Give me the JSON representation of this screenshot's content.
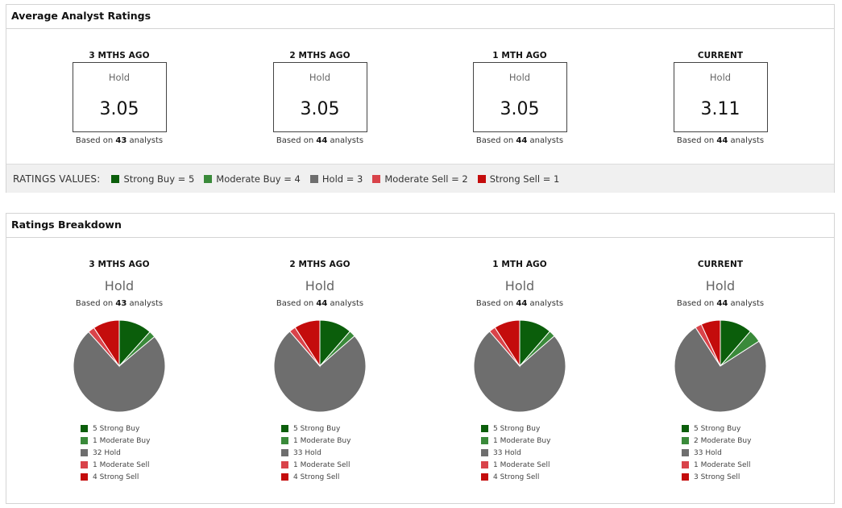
{
  "avg_panel": {
    "title": "Average Analyst Ratings",
    "columns": [
      {
        "head": "3 MTHS AGO",
        "label": "Hold",
        "value": "3.05",
        "based_prefix": "Based on",
        "analysts": "43",
        "based_suffix": "analysts"
      },
      {
        "head": "2 MTHS AGO",
        "label": "Hold",
        "value": "3.05",
        "based_prefix": "Based on",
        "analysts": "44",
        "based_suffix": "analysts"
      },
      {
        "head": "1 MTH AGO",
        "label": "Hold",
        "value": "3.05",
        "based_prefix": "Based on",
        "analysts": "44",
        "based_suffix": "analysts"
      },
      {
        "head": "CURRENT",
        "label": "Hold",
        "value": "3.11",
        "based_prefix": "Based on",
        "analysts": "44",
        "based_suffix": "analysts"
      }
    ],
    "ratings_values_title": "RATINGS VALUES:",
    "ratings_values": [
      {
        "label": "Strong Buy = 5",
        "color": "#0b5e0b"
      },
      {
        "label": "Moderate Buy = 4",
        "color": "#3a8a3a"
      },
      {
        "label": "Hold = 3",
        "color": "#6e6e6e"
      },
      {
        "label": "Moderate Sell = 2",
        "color": "#d9434a"
      },
      {
        "label": "Strong Sell = 1",
        "color": "#c40c0c"
      }
    ]
  },
  "breakdown_panel": {
    "title": "Ratings Breakdown"
  },
  "chart_data": [
    {
      "type": "pie",
      "title": "3 MTHS AGO",
      "rating": "Hold",
      "based_prefix": "Based on",
      "analysts": "43",
      "based_suffix": "analysts",
      "categories": [
        "Strong Buy",
        "Moderate Buy",
        "Hold",
        "Moderate Sell",
        "Strong Sell"
      ],
      "values": [
        5,
        1,
        32,
        1,
        4
      ],
      "colors": [
        "#0b5e0b",
        "#3a8a3a",
        "#6e6e6e",
        "#d9434a",
        "#c40c0c"
      ],
      "legend": [
        "5 Strong Buy",
        "1 Moderate Buy",
        "32 Hold",
        "1 Moderate Sell",
        "4 Strong Sell"
      ]
    },
    {
      "type": "pie",
      "title": "2 MTHS AGO",
      "rating": "Hold",
      "based_prefix": "Based on",
      "analysts": "44",
      "based_suffix": "analysts",
      "categories": [
        "Strong Buy",
        "Moderate Buy",
        "Hold",
        "Moderate Sell",
        "Strong Sell"
      ],
      "values": [
        5,
        1,
        33,
        1,
        4
      ],
      "colors": [
        "#0b5e0b",
        "#3a8a3a",
        "#6e6e6e",
        "#d9434a",
        "#c40c0c"
      ],
      "legend": [
        "5 Strong Buy",
        "1 Moderate Buy",
        "33 Hold",
        "1 Moderate Sell",
        "4 Strong Sell"
      ]
    },
    {
      "type": "pie",
      "title": "1 MTH AGO",
      "rating": "Hold",
      "based_prefix": "Based on",
      "analysts": "44",
      "based_suffix": "analysts",
      "categories": [
        "Strong Buy",
        "Moderate Buy",
        "Hold",
        "Moderate Sell",
        "Strong Sell"
      ],
      "values": [
        5,
        1,
        33,
        1,
        4
      ],
      "colors": [
        "#0b5e0b",
        "#3a8a3a",
        "#6e6e6e",
        "#d9434a",
        "#c40c0c"
      ],
      "legend": [
        "5 Strong Buy",
        "1 Moderate Buy",
        "33 Hold",
        "1 Moderate Sell",
        "4 Strong Sell"
      ]
    },
    {
      "type": "pie",
      "title": "CURRENT",
      "rating": "Hold",
      "based_prefix": "Based on",
      "analysts": "44",
      "based_suffix": "analysts",
      "categories": [
        "Strong Buy",
        "Moderate Buy",
        "Hold",
        "Moderate Sell",
        "Strong Sell"
      ],
      "values": [
        5,
        2,
        33,
        1,
        3
      ],
      "colors": [
        "#0b5e0b",
        "#3a8a3a",
        "#6e6e6e",
        "#d9434a",
        "#c40c0c"
      ],
      "legend": [
        "5 Strong Buy",
        "2 Moderate Buy",
        "33 Hold",
        "1 Moderate Sell",
        "3 Strong Sell"
      ]
    }
  ]
}
